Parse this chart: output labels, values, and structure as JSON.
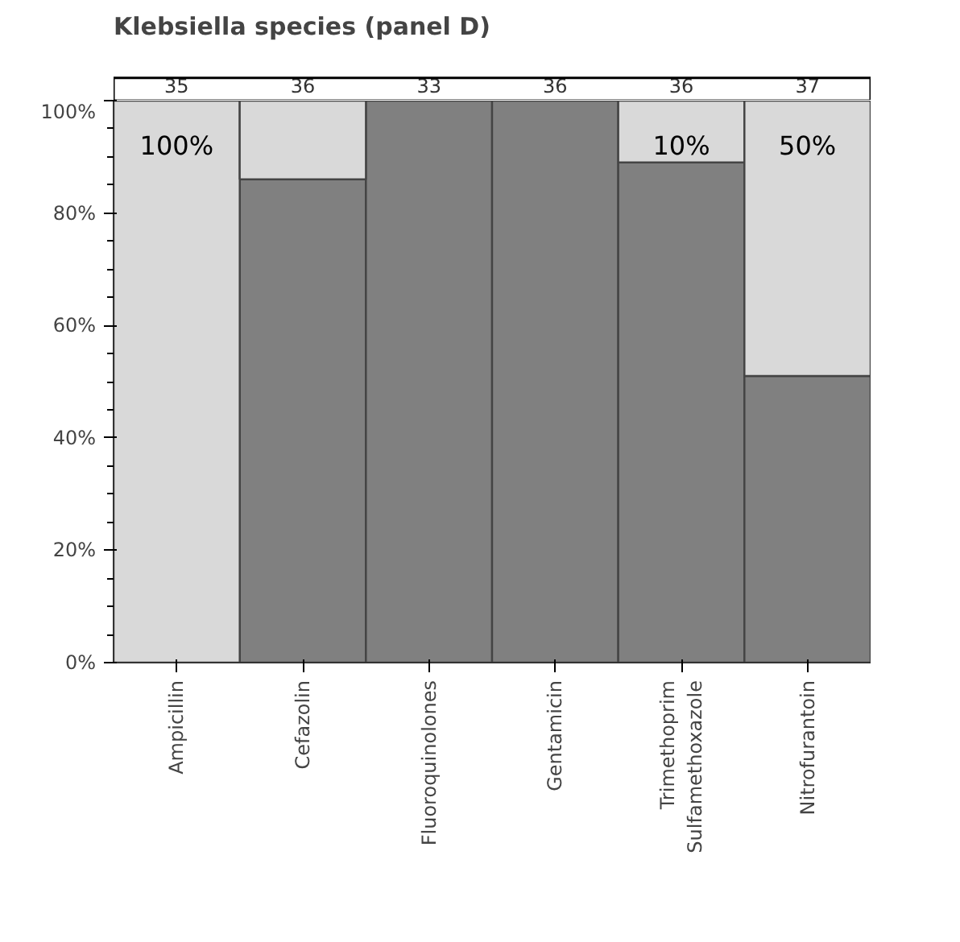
{
  "chart_data": {
    "type": "bar",
    "stacked": true,
    "title": "Klebsiella species (panel D)",
    "categories": [
      "Ampicillin",
      "Cefazolin",
      "Fluoroquinolones",
      "Gentamicin",
      "Trimethoprim\nSulfamethoxazole",
      "Nitrofurantoin"
    ],
    "series": [
      {
        "color": "#808080",
        "values": [
          0,
          86,
          100,
          100,
          89,
          51
        ]
      },
      {
        "color": "#d9d9d9",
        "values": [
          100,
          14,
          0,
          0,
          11,
          49
        ]
      }
    ],
    "ylim": [
      0,
      100
    ],
    "yticks": [
      {
        "value": 0,
        "label": "0%"
      },
      {
        "value": 20,
        "label": "20%"
      },
      {
        "value": 40,
        "label": "40%"
      },
      {
        "value": 60,
        "label": "60%"
      },
      {
        "value": 80,
        "label": "80%"
      },
      {
        "value": 100,
        "label": "100%"
      }
    ],
    "annotations": [
      "35",
      "36",
      "33",
      "36",
      "36",
      "37",
      {
        "text": "100%",
        "x": "Ampicillin",
        "y": 100
      },
      {
        "text": "10%",
        "x": "Trimethoprim\nSulfamethoxazole",
        "y": 100
      },
      {
        "text": "50%",
        "x": "Nitrofurantoin",
        "y": 100
      }
    ]
  }
}
